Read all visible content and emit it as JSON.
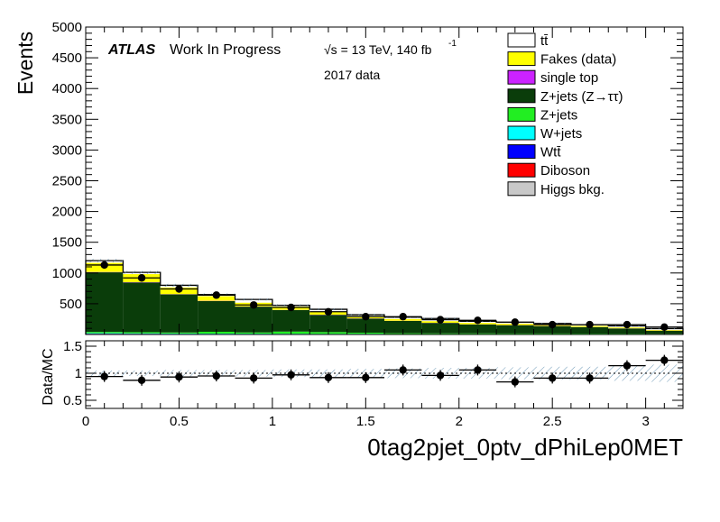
{
  "chart_data": [
    {
      "type": "bar",
      "stacked": true,
      "ylabel": "Events",
      "ylim": [
        0,
        5000
      ],
      "xlim": [
        0,
        3.2
      ],
      "y_ticks": [
        "500",
        "1000",
        "1500",
        "2000",
        "2500",
        "3000",
        "3500",
        "4000",
        "4500",
        "5000"
      ],
      "bin_edges": [
        0,
        0.2,
        0.4,
        0.6,
        0.8,
        1.0,
        1.2,
        1.4,
        1.6,
        1.8,
        2.0,
        2.2,
        2.4,
        2.6,
        2.8,
        3.0,
        3.2
      ],
      "atlas_label": "ATLAS",
      "atlas_sublabel": "Work In Progress",
      "energy_label": "√s = 13 TeV, 140 fb",
      "energy_superscript": "-1",
      "dataset_label": "2017 data",
      "series": [
        {
          "name": "Higgs bkg.",
          "color": "#c8c8c8",
          "values": [
            5,
            5,
            4,
            4,
            3,
            3,
            3,
            3,
            2,
            2,
            2,
            2,
            2,
            2,
            2,
            2
          ]
        },
        {
          "name": "Diboson",
          "color": "#ff0000",
          "values": [
            5,
            4,
            4,
            3,
            3,
            3,
            2,
            2,
            2,
            2,
            2,
            2,
            2,
            2,
            2,
            1
          ]
        },
        {
          "name": "Wtt̄",
          "color": "#0000ff",
          "values": [
            3,
            3,
            2,
            2,
            2,
            2,
            2,
            2,
            1,
            1,
            1,
            1,
            1,
            1,
            1,
            1
          ]
        },
        {
          "name": "W+jets",
          "color": "#00ffff",
          "values": [
            8,
            7,
            6,
            5,
            5,
            4,
            4,
            4,
            3,
            3,
            3,
            3,
            3,
            3,
            2,
            2
          ]
        },
        {
          "name": "Z+jets",
          "color": "#22ee22",
          "values": [
            20,
            18,
            16,
            30,
            20,
            35,
            28,
            18,
            12,
            10,
            10,
            8,
            8,
            6,
            6,
            5
          ]
        },
        {
          "name": "Z+jets (Z→ττ)",
          "color": "#0a3d0a",
          "values": [
            970,
            810,
            620,
            500,
            420,
            350,
            280,
            230,
            200,
            170,
            145,
            135,
            120,
            105,
            85,
            50
          ]
        },
        {
          "name": "single top",
          "color": "#cc22ff",
          "values": [
            5,
            5,
            4,
            4,
            3,
            3,
            3,
            3,
            3,
            2,
            2,
            2,
            2,
            2,
            2,
            2
          ]
        },
        {
          "name": "Fakes (data)",
          "color": "#ffff00",
          "values": [
            150,
            130,
            110,
            75,
            62,
            55,
            45,
            38,
            30,
            28,
            25,
            23,
            20,
            18,
            15,
            12
          ]
        },
        {
          "name": "tt̄",
          "color": "#ffffff",
          "values": [
            34,
            28,
            34,
            27,
            52,
            20,
            43,
            20,
            27,
            42,
            25,
            24,
            22,
            21,
            25,
            20
          ]
        }
      ],
      "data_points": {
        "name": "Data",
        "values": [
          1130,
          920,
          740,
          640,
          480,
          440,
          370,
          290,
          290,
          240,
          230,
          200,
          160,
          160,
          160,
          120
        ]
      }
    },
    {
      "type": "scatter",
      "ylabel": "Data/MC",
      "xlabel": "0tag2pjet_0ptv_dPhiLep0MET",
      "ylim": [
        0.35,
        1.6
      ],
      "xlim": [
        0,
        3.2
      ],
      "y_ticks": [
        "0.5",
        "1",
        "1.5"
      ],
      "x_ticks": [
        "0",
        "0.5",
        "1",
        "1.5",
        "2",
        "2.5",
        "3"
      ],
      "ratio": [
        0.94,
        0.87,
        0.93,
        0.95,
        0.91,
        0.97,
        0.92,
        0.92,
        1.06,
        0.96,
        1.06,
        0.84,
        0.91,
        0.91,
        1.14,
        1.24
      ],
      "band": [
        0.05,
        0.05,
        0.06,
        0.06,
        0.06,
        0.07,
        0.07,
        0.08,
        0.09,
        0.1,
        0.1,
        0.11,
        0.12,
        0.12,
        0.14,
        0.16
      ]
    }
  ]
}
